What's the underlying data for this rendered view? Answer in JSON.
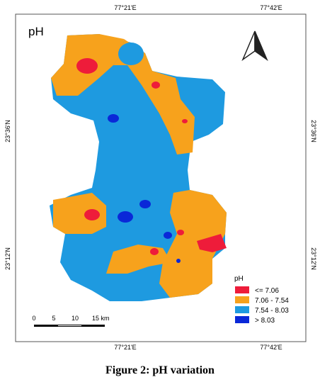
{
  "map": {
    "title": "pH",
    "top_labels": [
      "77°21'E",
      "77°42'E"
    ],
    "bottom_labels": [
      "77°21'E",
      "77°42'E"
    ],
    "left_labels": [
      "23°36'N",
      "23°12'N"
    ],
    "right_labels": [
      "23°36'N",
      "23°12'N"
    ],
    "legend": {
      "title": "pH",
      "entries": [
        {
          "label": "<= 7.06",
          "color": "#ee1c3a"
        },
        {
          "label": "7.06 - 7.54",
          "color": "#f7a21c"
        },
        {
          "label": "7.54 - 8.03",
          "color": "#1e9ae0"
        },
        {
          "label": "> 8.03",
          "color": "#0a28d8"
        }
      ]
    },
    "scale_bar": [
      "0",
      "5",
      "10",
      "15 km"
    ]
  },
  "caption": "Figure 2: pH variation"
}
